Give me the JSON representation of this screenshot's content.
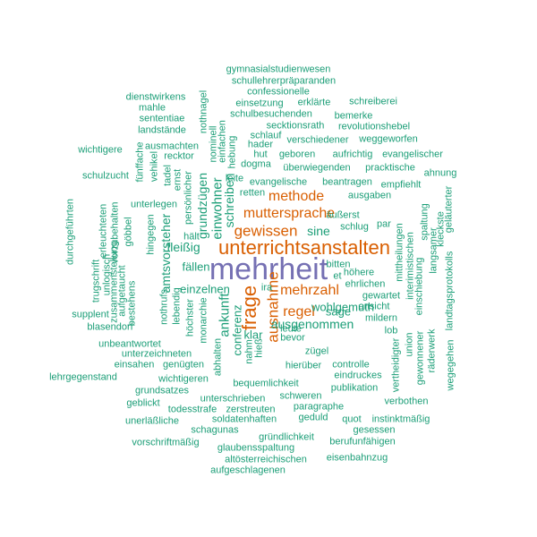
{
  "colors": {
    "top": "#7570b3",
    "high": "#d95f02",
    "rest": "#1b9e77"
  },
  "words": [
    {
      "text": "mehrheit",
      "tier": "top"
    },
    {
      "text": "unterrichtsanstalten",
      "tier": "high"
    },
    {
      "text": "frage",
      "tier": "high"
    },
    {
      "text": "muttersprache",
      "tier": "high"
    },
    {
      "text": "ausnahme",
      "tier": "high"
    },
    {
      "text": "methode",
      "tier": "high"
    },
    {
      "text": "gewissen",
      "tier": "high"
    },
    {
      "text": "mehrzahl",
      "tier": "high"
    },
    {
      "text": "regel",
      "tier": "high"
    },
    {
      "text": "einwohner",
      "tier": "rest"
    },
    {
      "text": "schreiben",
      "tier": "rest"
    },
    {
      "text": "grundzügen",
      "tier": "rest"
    },
    {
      "text": "amtsvorsteher",
      "tier": "rest"
    },
    {
      "text": "ausgenommen",
      "tier": "rest"
    },
    {
      "text": "wohlgemuth",
      "tier": "rest"
    },
    {
      "text": "sage",
      "tier": "rest"
    },
    {
      "text": "sine",
      "tier": "rest"
    },
    {
      "text": "fleißig",
      "tier": "rest"
    },
    {
      "text": "fällen",
      "tier": "rest"
    },
    {
      "text": "einzelnen",
      "tier": "rest"
    },
    {
      "text": "ankunft",
      "tier": "rest"
    },
    {
      "text": "conferenz",
      "tier": "rest"
    },
    {
      "text": "klar",
      "tier": "rest"
    },
    {
      "text": "gymnasialstudienwesen",
      "tier": "rest"
    },
    {
      "text": "schullehrerpräparanden",
      "tier": "rest"
    },
    {
      "text": "confessionelle",
      "tier": "rest"
    },
    {
      "text": "dienstwirkens",
      "tier": "rest"
    },
    {
      "text": "mahle",
      "tier": "rest"
    },
    {
      "text": "sententiae",
      "tier": "rest"
    },
    {
      "text": "landstände",
      "tier": "rest"
    },
    {
      "text": "einsetzung",
      "tier": "rest"
    },
    {
      "text": "erklärte",
      "tier": "rest"
    },
    {
      "text": "schreiberei",
      "tier": "rest"
    },
    {
      "text": "schulbesuchenden",
      "tier": "rest"
    },
    {
      "text": "bemerke",
      "tier": "rest"
    },
    {
      "text": "secktionsrath",
      "tier": "rest"
    },
    {
      "text": "revolutionshebel",
      "tier": "rest"
    },
    {
      "text": "schlauf",
      "tier": "rest"
    },
    {
      "text": "verschiedener",
      "tier": "rest"
    },
    {
      "text": "weggeworfen",
      "tier": "rest"
    },
    {
      "text": "hader",
      "tier": "rest"
    },
    {
      "text": "wichtigere",
      "tier": "rest"
    },
    {
      "text": "ausmachten",
      "tier": "rest"
    },
    {
      "text": "recktor",
      "tier": "rest"
    },
    {
      "text": "hut",
      "tier": "rest"
    },
    {
      "text": "geboren",
      "tier": "rest"
    },
    {
      "text": "aufrichtig",
      "tier": "rest"
    },
    {
      "text": "evangelischer",
      "tier": "rest"
    },
    {
      "text": "dogma",
      "tier": "rest"
    },
    {
      "text": "überwiegenden",
      "tier": "rest"
    },
    {
      "text": "pracktische",
      "tier": "rest"
    },
    {
      "text": "ahnung",
      "tier": "rest"
    },
    {
      "text": "schulzucht",
      "tier": "rest"
    },
    {
      "text": "leite",
      "tier": "rest"
    },
    {
      "text": "evangelische",
      "tier": "rest"
    },
    {
      "text": "beantragen",
      "tier": "rest"
    },
    {
      "text": "empfiehlt",
      "tier": "rest"
    },
    {
      "text": "retten",
      "tier": "rest"
    },
    {
      "text": "ausgaben",
      "tier": "rest"
    },
    {
      "text": "unterlegen",
      "tier": "rest"
    },
    {
      "text": "äußerst",
      "tier": "rest"
    },
    {
      "text": "par",
      "tier": "rest"
    },
    {
      "text": "schlug",
      "tier": "rest"
    },
    {
      "text": "hält",
      "tier": "rest"
    },
    {
      "text": "bitten",
      "tier": "rest"
    },
    {
      "text": "höhere",
      "tier": "rest"
    },
    {
      "text": "ira",
      "tier": "rest"
    },
    {
      "text": "et",
      "tier": "rest"
    },
    {
      "text": "ehrlichen",
      "tier": "rest"
    },
    {
      "text": "gewartet",
      "tier": "rest"
    },
    {
      "text": "ansicht",
      "tier": "rest"
    },
    {
      "text": "supplent",
      "tier": "rest"
    },
    {
      "text": "mildern",
      "tier": "rest"
    },
    {
      "text": "blasendorf",
      "tier": "rest"
    },
    {
      "text": "leute",
      "tier": "rest"
    },
    {
      "text": "bevor",
      "tier": "rest"
    },
    {
      "text": "lob",
      "tier": "rest"
    },
    {
      "text": "unbeantwortet",
      "tier": "rest"
    },
    {
      "text": "zügel",
      "tier": "rest"
    },
    {
      "text": "hierüber",
      "tier": "rest"
    },
    {
      "text": "controlle",
      "tier": "rest"
    },
    {
      "text": "unterzeichneten",
      "tier": "rest"
    },
    {
      "text": "eindruckes",
      "tier": "rest"
    },
    {
      "text": "einsahen",
      "tier": "rest"
    },
    {
      "text": "genügten",
      "tier": "rest"
    },
    {
      "text": "publikation",
      "tier": "rest"
    },
    {
      "text": "lehrgegenstand",
      "tier": "rest"
    },
    {
      "text": "wichtigeren",
      "tier": "rest"
    },
    {
      "text": "bequemlichkeit",
      "tier": "rest"
    },
    {
      "text": "verbothen",
      "tier": "rest"
    },
    {
      "text": "grundsatzes",
      "tier": "rest"
    },
    {
      "text": "unterschrieben",
      "tier": "rest"
    },
    {
      "text": "schweren",
      "tier": "rest"
    },
    {
      "text": "geblickt",
      "tier": "rest"
    },
    {
      "text": "todesstrafe",
      "tier": "rest"
    },
    {
      "text": "zerstreuten",
      "tier": "rest"
    },
    {
      "text": "paragraphe",
      "tier": "rest"
    },
    {
      "text": "unerläßliche",
      "tier": "rest"
    },
    {
      "text": "soldatenhaften",
      "tier": "rest"
    },
    {
      "text": "geduld",
      "tier": "rest"
    },
    {
      "text": "quot",
      "tier": "rest"
    },
    {
      "text": "instinktmäßig",
      "tier": "rest"
    },
    {
      "text": "schagunas",
      "tier": "rest"
    },
    {
      "text": "gesessen",
      "tier": "rest"
    },
    {
      "text": "gründlichkeit",
      "tier": "rest"
    },
    {
      "text": "vorschriftmäßig",
      "tier": "rest"
    },
    {
      "text": "glaubensspaltung",
      "tier": "rest"
    },
    {
      "text": "berufunfähigen",
      "tier": "rest"
    },
    {
      "text": "altösterreichischen",
      "tier": "rest"
    },
    {
      "text": "eisenbahnzug",
      "tier": "rest"
    },
    {
      "text": "aufgeschlagenen",
      "tier": "rest"
    },
    {
      "text": "nothnagel",
      "tier": "rest"
    },
    {
      "text": "nominell",
      "tier": "rest"
    },
    {
      "text": "einfachen",
      "tier": "rest"
    },
    {
      "text": "hebung",
      "tier": "rest"
    },
    {
      "text": "fünffache",
      "tier": "rest"
    },
    {
      "text": "vehikel",
      "tier": "rest"
    },
    {
      "text": "tadel",
      "tier": "rest"
    },
    {
      "text": "ernst",
      "tier": "rest"
    },
    {
      "text": "persönlicher",
      "tier": "rest"
    },
    {
      "text": "hingegen",
      "tier": "rest"
    },
    {
      "text": "durchgeführten",
      "tier": "rest"
    },
    {
      "text": "erleuchteten",
      "tier": "rest"
    },
    {
      "text": "vorzubehalten",
      "tier": "rest"
    },
    {
      "text": "göbbel",
      "tier": "rest"
    },
    {
      "text": "trugschrift",
      "tier": "rest"
    },
    {
      "text": "unlogisch",
      "tier": "rest"
    },
    {
      "text": "aufgetaucht",
      "tier": "rest"
    },
    {
      "text": "zusammenstellung",
      "tier": "rest"
    },
    {
      "text": "bestehens",
      "tier": "rest"
    },
    {
      "text": "nothrufs",
      "tier": "rest"
    },
    {
      "text": "lebendig",
      "tier": "rest"
    },
    {
      "text": "höchster",
      "tier": "rest"
    },
    {
      "text": "monarchie",
      "tier": "rest"
    },
    {
      "text": "abhalten",
      "tier": "rest"
    },
    {
      "text": "nahm",
      "tier": "rest"
    },
    {
      "text": "hieß",
      "tier": "rest"
    },
    {
      "text": "mittheilungen",
      "tier": "rest"
    },
    {
      "text": "interimistischen",
      "tier": "rest"
    },
    {
      "text": "einschiebung",
      "tier": "rest"
    },
    {
      "text": "spaltung",
      "tier": "rest"
    },
    {
      "text": "langsamer",
      "tier": "rest"
    },
    {
      "text": "kleckste",
      "tier": "rest"
    },
    {
      "text": "geläuterter",
      "tier": "rest"
    },
    {
      "text": "landtagsprotokolls",
      "tier": "rest"
    },
    {
      "text": "vertheidigter",
      "tier": "rest"
    },
    {
      "text": "union",
      "tier": "rest"
    },
    {
      "text": "gewonnener",
      "tier": "rest"
    },
    {
      "text": "räderwerk",
      "tier": "rest"
    },
    {
      "text": "wegegehen",
      "tier": "rest"
    }
  ]
}
